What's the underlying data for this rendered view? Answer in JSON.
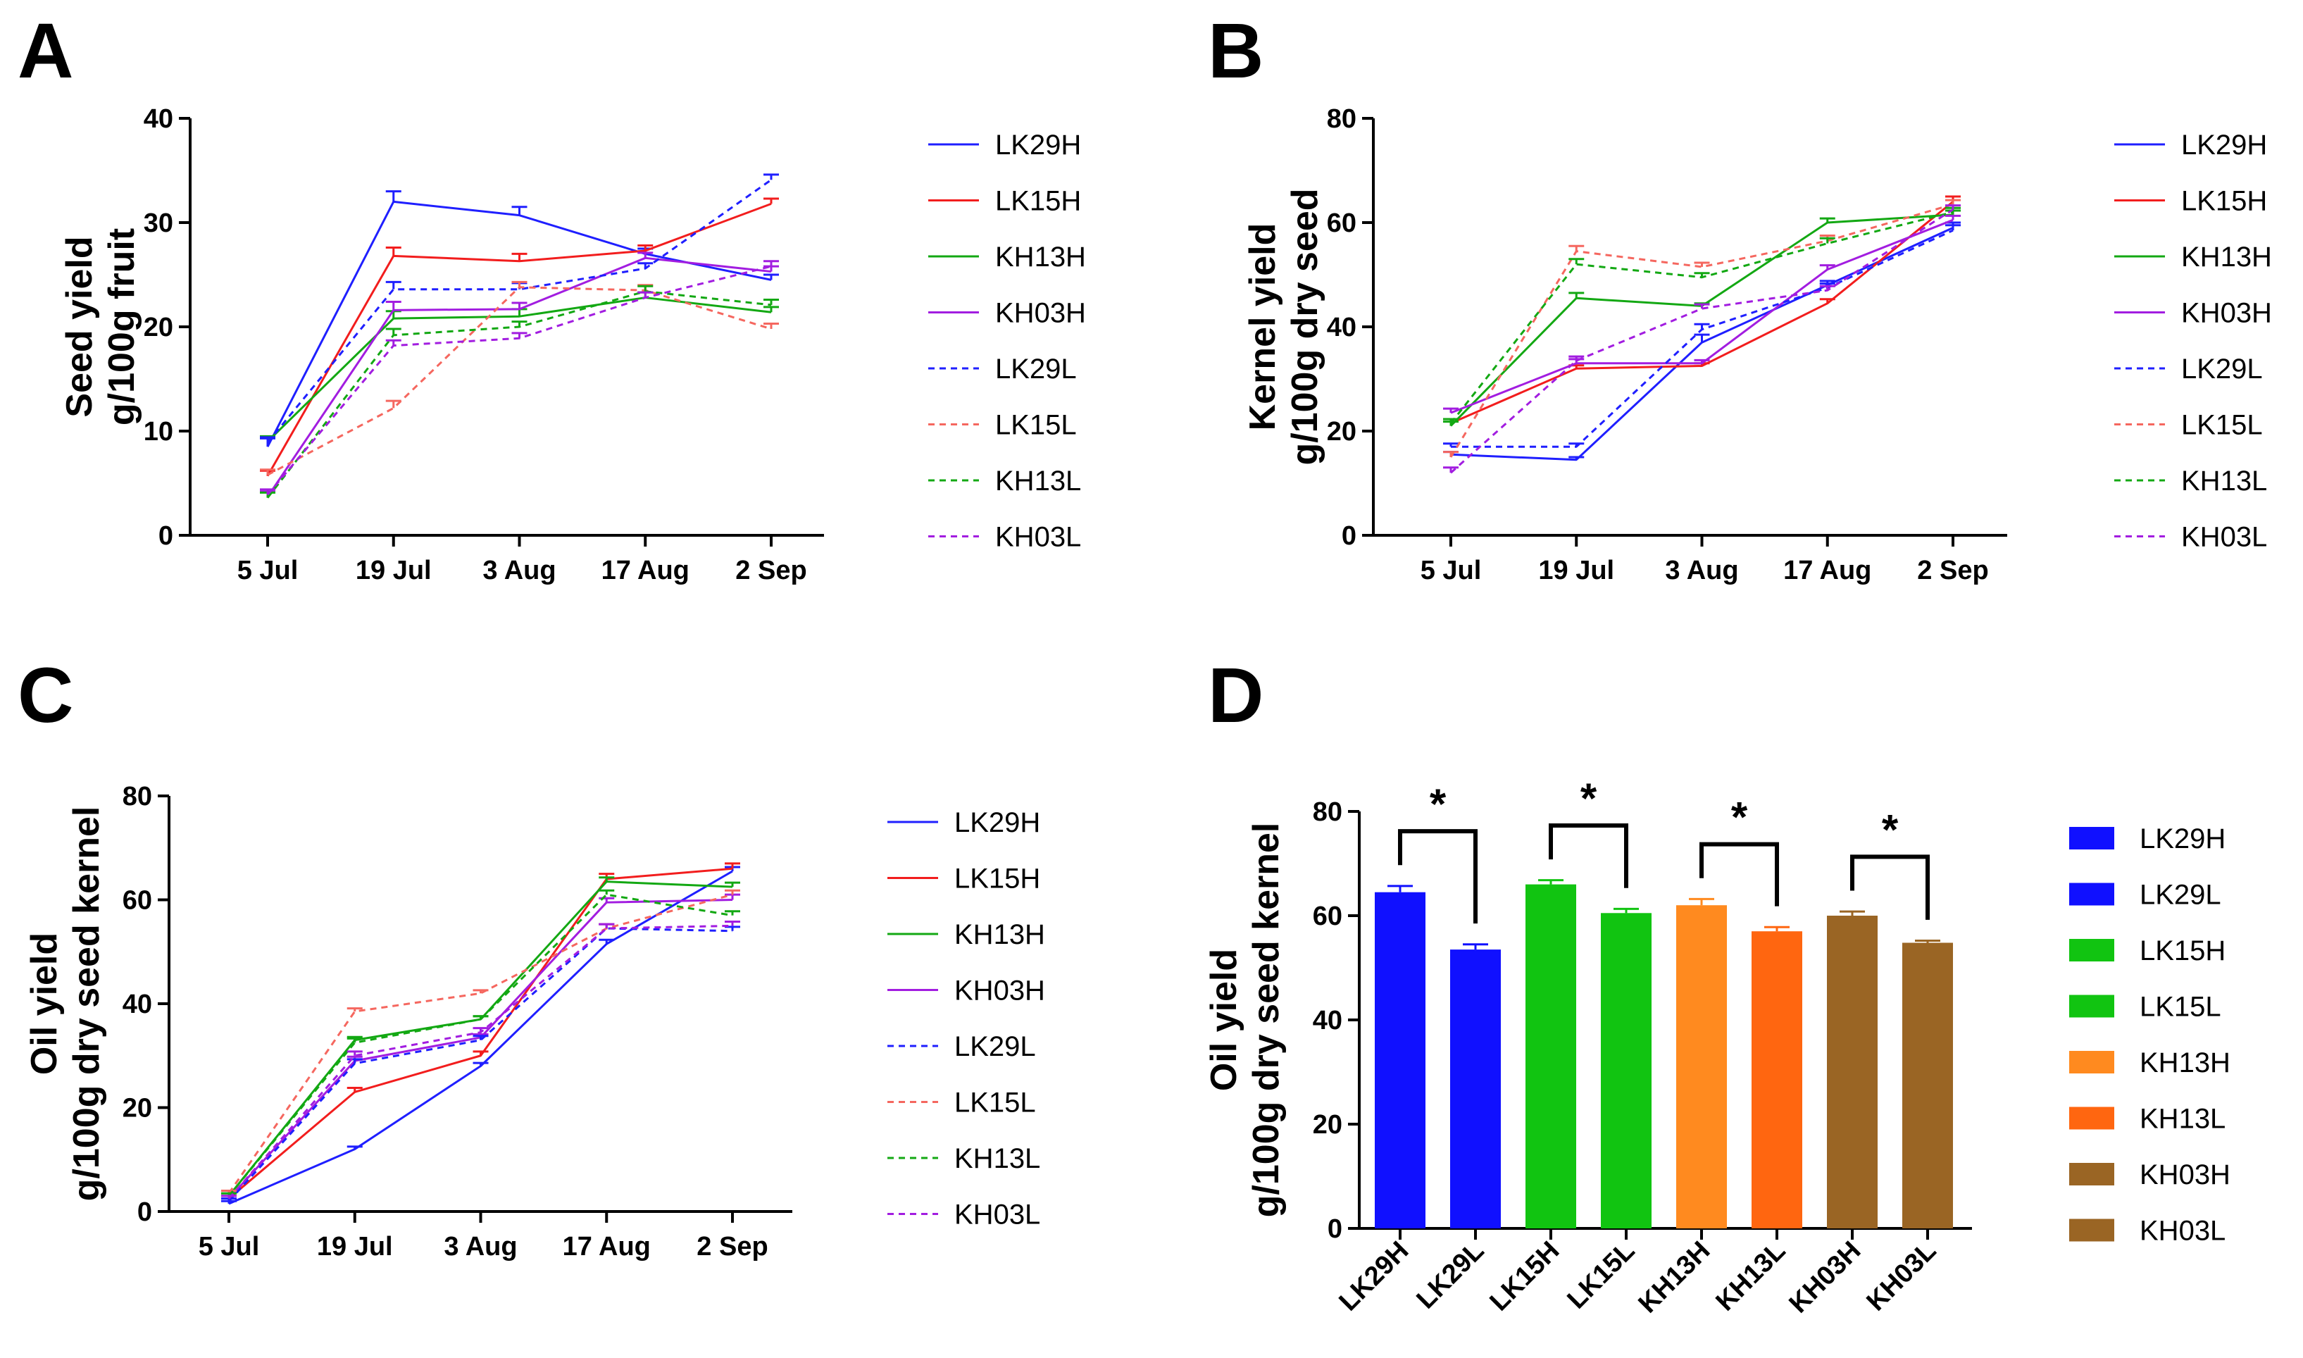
{
  "panels": [
    {
      "letter": "A"
    },
    {
      "letter": "B"
    },
    {
      "letter": "C"
    },
    {
      "letter": "D"
    }
  ],
  "chart_data": [
    {
      "panel": "A",
      "type": "line",
      "ylabel_lines": [
        "Seed yield",
        "g/100g fruit"
      ],
      "categories": [
        "5 Jul",
        "19 Jul",
        "3 Aug",
        "17 Aug",
        "2 Sep"
      ],
      "ylim": [
        0,
        40
      ],
      "yticks": [
        0,
        10,
        20,
        30,
        40
      ],
      "series": [
        {
          "name": "LK29H",
          "color": "#1f1fff",
          "dash": false,
          "values": [
            8.5,
            32,
            30.7,
            27,
            24.5
          ],
          "err": [
            0.8,
            1.0,
            0.8,
            0.5,
            0.5
          ]
        },
        {
          "name": "LK15H",
          "color": "#f21d1d",
          "dash": false,
          "values": [
            5.7,
            26.8,
            26.3,
            27.3,
            31.8
          ],
          "err": [
            0.5,
            0.8,
            0.7,
            0.5,
            0.5
          ]
        },
        {
          "name": "KH13H",
          "color": "#13a813",
          "dash": false,
          "values": [
            9.0,
            20.8,
            21.0,
            22.8,
            21.4
          ],
          "err": [
            0.5,
            0.7,
            0.7,
            0.5,
            0.5
          ]
        },
        {
          "name": "KH03H",
          "color": "#a21de0",
          "dash": false,
          "values": [
            3.7,
            21.6,
            21.7,
            26.6,
            25.3
          ],
          "err": [
            0.5,
            0.8,
            0.6,
            0.5,
            0.5
          ]
        },
        {
          "name": "LK29L",
          "color": "#1f1fff",
          "dash": true,
          "values": [
            8.9,
            23.6,
            23.6,
            25.6,
            34.1
          ],
          "err": [
            0.5,
            0.7,
            0.6,
            0.5,
            0.5
          ]
        },
        {
          "name": "LK15L",
          "color": "#f5675f",
          "dash": true,
          "values": [
            5.8,
            12.2,
            23.8,
            23.5,
            19.8
          ],
          "err": [
            0.5,
            0.7,
            0.5,
            0.5,
            0.5
          ]
        },
        {
          "name": "KH13L",
          "color": "#13a813",
          "dash": true,
          "values": [
            3.6,
            19.2,
            20.0,
            23.4,
            22.1
          ],
          "err": [
            0.5,
            0.6,
            0.5,
            0.5,
            0.5
          ]
        },
        {
          "name": "KH03L",
          "color": "#a21de0",
          "dash": true,
          "values": [
            3.9,
            18.2,
            18.9,
            22.8,
            25.8
          ],
          "err": [
            0.5,
            0.5,
            0.5,
            0.5,
            0.5
          ]
        }
      ]
    },
    {
      "panel": "B",
      "type": "line",
      "ylabel_lines": [
        "Kernel yield",
        "g/100g dry seed"
      ],
      "categories": [
        "5 Jul",
        "19 Jul",
        "3 Aug",
        "17 Aug",
        "2 Sep"
      ],
      "ylim": [
        0,
        80
      ],
      "yticks": [
        0,
        20,
        40,
        60,
        80
      ],
      "series": [
        {
          "name": "LK29H",
          "color": "#1f1fff",
          "dash": false,
          "values": [
            15.5,
            14.5,
            37.0,
            48.0,
            59.0
          ],
          "err": [
            0.5,
            0.5,
            1.5,
            0.8,
            1.0
          ]
        },
        {
          "name": "LK15H",
          "color": "#f21d1d",
          "dash": false,
          "values": [
            21.5,
            32.0,
            32.5,
            44.5,
            64.0
          ],
          "err": [
            0.8,
            0.6,
            0.5,
            0.8,
            1.0
          ]
        },
        {
          "name": "KH13H",
          "color": "#13a813",
          "dash": false,
          "values": [
            21.0,
            45.5,
            44.0,
            60.0,
            61.5
          ],
          "err": [
            0.8,
            1.0,
            0.5,
            0.8,
            0.8
          ]
        },
        {
          "name": "KH03H",
          "color": "#a21de0",
          "dash": false,
          "values": [
            23.5,
            33.0,
            33.0,
            51.0,
            60.5
          ],
          "err": [
            0.8,
            0.8,
            0.6,
            0.8,
            0.8
          ]
        },
        {
          "name": "LK29L",
          "color": "#1f1fff",
          "dash": true,
          "values": [
            17.0,
            17.0,
            39.5,
            47.5,
            58.5
          ],
          "err": [
            0.6,
            0.6,
            1.0,
            0.8,
            1.0
          ]
        },
        {
          "name": "LK15L",
          "color": "#f5675f",
          "dash": true,
          "values": [
            15.0,
            54.5,
            51.5,
            56.5,
            63.5
          ],
          "err": [
            1.0,
            1.0,
            0.8,
            1.0,
            0.8
          ]
        },
        {
          "name": "KH13L",
          "color": "#13a813",
          "dash": true,
          "values": [
            21.5,
            52.0,
            49.5,
            56.0,
            62.0
          ],
          "err": [
            0.8,
            1.0,
            0.8,
            1.0,
            0.8
          ]
        },
        {
          "name": "KH03L",
          "color": "#a21de0",
          "dash": true,
          "values": [
            12.0,
            33.5,
            43.5,
            47.0,
            62.5
          ],
          "err": [
            1.0,
            0.8,
            0.8,
            0.8,
            0.8
          ]
        }
      ]
    },
    {
      "panel": "C",
      "type": "line",
      "ylabel_lines": [
        "Oil yield",
        "g/100g dry seed kernel"
      ],
      "categories": [
        "5 Jul",
        "19 Jul",
        "3 Aug",
        "17 Aug",
        "2 Sep"
      ],
      "ylim": [
        0,
        80
      ],
      "yticks": [
        0,
        20,
        40,
        60,
        80
      ],
      "series": [
        {
          "name": "LK29H",
          "color": "#1f1fff",
          "dash": false,
          "values": [
            1.5,
            12.0,
            28.0,
            51.5,
            65.5
          ],
          "err": [
            0.5,
            0.5,
            0.6,
            0.8,
            0.8
          ]
        },
        {
          "name": "LK15H",
          "color": "#f21d1d",
          "dash": false,
          "values": [
            2.5,
            23.0,
            30.0,
            64.0,
            66.0
          ],
          "err": [
            0.5,
            0.8,
            0.8,
            1.0,
            1.0
          ]
        },
        {
          "name": "KH13H",
          "color": "#13a813",
          "dash": false,
          "values": [
            3.0,
            33.0,
            37.0,
            63.5,
            62.5
          ],
          "err": [
            0.5,
            0.6,
            0.6,
            0.8,
            0.8
          ]
        },
        {
          "name": "KH03H",
          "color": "#a21de0",
          "dash": false,
          "values": [
            2.5,
            29.0,
            33.5,
            59.5,
            60.0
          ],
          "err": [
            0.5,
            0.8,
            0.6,
            0.8,
            1.0
          ]
        },
        {
          "name": "LK29L",
          "color": "#1f1fff",
          "dash": true,
          "values": [
            2.0,
            28.5,
            33.0,
            54.5,
            54.0
          ],
          "err": [
            0.5,
            0.8,
            0.8,
            0.8,
            0.8
          ]
        },
        {
          "name": "LK15L",
          "color": "#f5675f",
          "dash": true,
          "values": [
            3.5,
            38.5,
            42.0,
            54.5,
            61.0
          ],
          "err": [
            0.5,
            0.6,
            0.6,
            0.8,
            0.8
          ]
        },
        {
          "name": "KH13L",
          "color": "#13a813",
          "dash": true,
          "values": [
            3.0,
            32.5,
            37.0,
            61.0,
            57.0
          ],
          "err": [
            0.5,
            0.8,
            0.6,
            0.8,
            0.8
          ]
        },
        {
          "name": "KH03L",
          "color": "#a21de0",
          "dash": true,
          "values": [
            2.5,
            30.0,
            34.5,
            54.5,
            55.0
          ],
          "err": [
            0.5,
            0.8,
            0.8,
            0.8,
            0.8
          ]
        }
      ]
    },
    {
      "panel": "D",
      "type": "bar",
      "ylabel_lines": [
        "Oil yield",
        "g/100g dry seed kernel"
      ],
      "categories": [
        "LK29H",
        "LK29L",
        "LK15H",
        "LK15L",
        "KH13H",
        "KH13L",
        "KH03H",
        "KH03L"
      ],
      "values": [
        64.5,
        53.5,
        66.0,
        60.5,
        62.0,
        57.0,
        60.0,
        54.8
      ],
      "err": [
        1.2,
        1.0,
        0.8,
        0.8,
        1.2,
        0.8,
        0.8,
        0.4
      ],
      "colors": [
        "#1010ff",
        "#1010ff",
        "#11c411",
        "#11c411",
        "#ff8a1f",
        "#ff6610",
        "#9a6524",
        "#9a6524"
      ],
      "ylim": [
        0,
        80
      ],
      "yticks": [
        0,
        20,
        40,
        60,
        80
      ],
      "significance": [
        {
          "pair": [
            0,
            1
          ],
          "label": "*"
        },
        {
          "pair": [
            2,
            3
          ],
          "label": "*"
        },
        {
          "pair": [
            4,
            5
          ],
          "label": "*"
        },
        {
          "pair": [
            6,
            7
          ],
          "label": "*"
        }
      ]
    }
  ]
}
